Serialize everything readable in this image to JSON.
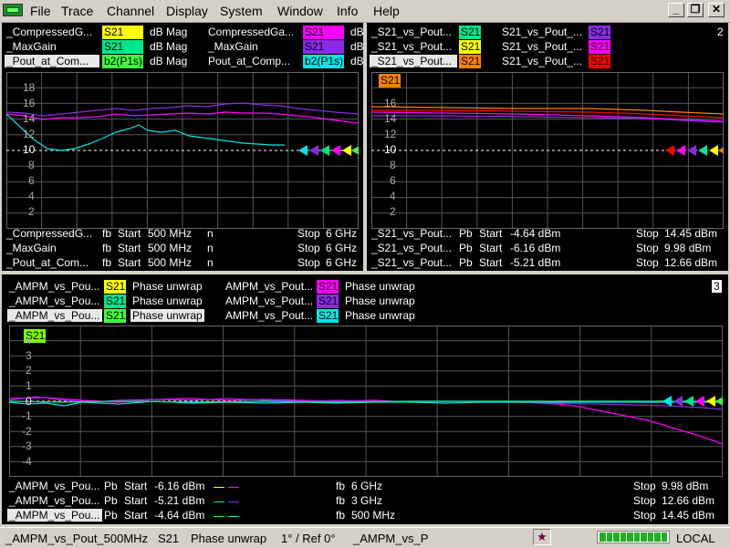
{
  "menu": [
    "File",
    "Trace",
    "Channel",
    "Display",
    "System",
    "Window",
    "Info",
    "Help"
  ],
  "window_buttons": {
    "minimize": "_",
    "restore": "❐",
    "close": "✕"
  },
  "win1": {
    "traces": [
      {
        "name": "_CompressedG...",
        "meas": "S21",
        "meas_color": "#ffff00",
        "format": "dB Mag",
        "name2": "CompressedGa...",
        "meas2": "S21",
        "meas2_color": "#ff00ff",
        "format2": "dB"
      },
      {
        "name": "_MaxGain",
        "meas": "S21",
        "meas_color": "#00e68a",
        "format": "dB Mag",
        "name2": "_MaxGain",
        "meas2": "S21",
        "meas2_color": "#8a2be2",
        "format2": "dB"
      },
      {
        "name": "_Pout_at_Com...",
        "meas": "b2(P1s)",
        "meas_color": "#40ff40",
        "format": "dB Mag",
        "name2": "Pout_at_Comp...",
        "meas2": "b2(P1s)",
        "meas2_color": "#00e5e5",
        "format2": "dB"
      }
    ],
    "yticks": [
      "18",
      "16",
      "14",
      "12",
      "10",
      "8",
      "6",
      "4",
      "2"
    ],
    "ref_value": "10",
    "footer": [
      {
        "name": "_CompressedG...",
        "fb": "fb",
        "start": "Start",
        "start_val": "500 MHz",
        "n": "n",
        "stop": "Stop",
        "stop_val": "6 GHz"
      },
      {
        "name": "_MaxGain",
        "fb": "fb",
        "start": "Start",
        "start_val": "500 MHz",
        "n": "n",
        "stop": "Stop",
        "stop_val": "6 GHz"
      },
      {
        "name": "_Pout_at_Com...",
        "fb": "fb",
        "start": "Start",
        "start_val": "500 MHz",
        "n": "n",
        "stop": "Stop",
        "stop_val": "6 GHz"
      }
    ]
  },
  "win2": {
    "number": "2",
    "traces": [
      {
        "name": "_S21_vs_Pout...",
        "meas": "S21",
        "meas_color": "#00e68a",
        "name2": "S21_vs_Pout_...",
        "meas2": "S21",
        "meas2_color": "#8a2be2"
      },
      {
        "name": "_S21_vs_Pout...",
        "meas": "S21",
        "meas_color": "#ffff00",
        "name2": "S21_vs_Pout_...",
        "meas2": "S21",
        "meas2_color": "#ff00ff"
      },
      {
        "name": "_S21_vs_Pout...",
        "meas": "S21",
        "meas_color": "#ff8000",
        "name2": "S21_vs_Pout_...",
        "meas2": "S21",
        "meas2_color": "#ff0000"
      }
    ],
    "active_badge": "S21",
    "active_color": "#ff8000",
    "yticks": [
      "16",
      "14",
      "12",
      "10",
      "8",
      "6",
      "4",
      "2"
    ],
    "ref_value": "10",
    "footer": [
      {
        "name": "_S21_vs_Pout...",
        "fb": "Pb",
        "start": "Start",
        "start_val": "-4.64 dBm",
        "stop": "Stop",
        "stop_val": "14.45 dBm"
      },
      {
        "name": "_S21_vs_Pout...",
        "fb": "Pb",
        "start": "Start",
        "start_val": "-6.16 dBm",
        "stop": "Stop",
        "stop_val": "9.98 dBm"
      },
      {
        "name": "_S21_vs_Pout...",
        "fb": "Pb",
        "start": "Start",
        "start_val": "-5.21 dBm",
        "stop": "Stop",
        "stop_val": "12.66 dBm"
      }
    ]
  },
  "win3": {
    "number": "3",
    "traces": [
      {
        "name": "_AMPM_vs_Pou...",
        "meas": "S21",
        "meas_color": "#ffff00",
        "format": "Phase unwrap",
        "name2": "AMPM_vs_Pout...",
        "meas2": "S21",
        "meas2_color": "#ff00ff",
        "format2": "Phase unwrap"
      },
      {
        "name": "_AMPM_vs_Pou...",
        "meas": "S21",
        "meas_color": "#00e68a",
        "format": "Phase unwrap",
        "name2": "AMPM_vs_Pout...",
        "meas2": "S21",
        "meas2_color": "#8a2be2",
        "format2": "Phase unwrap"
      },
      {
        "name": "_AMPM_vs_Pou...",
        "meas": "S21",
        "meas_color": "#40ff40",
        "format": "Phase unwrap",
        "name2": "AMPM_vs_Pout...",
        "meas2": "S21",
        "meas2_color": "#00e5e5",
        "format2": "Phase unwrap"
      }
    ],
    "active_badge": "S21",
    "active_color": "#7cfc00",
    "yticks": [
      "4",
      "3",
      "2",
      "1",
      "0",
      "-1",
      "-2",
      "-3",
      "-4"
    ],
    "ref_value": "0",
    "footer": [
      {
        "name": "_AMPM_vs_Pou...",
        "fb": "Pb",
        "start": "Start",
        "start_val": "-6.16 dBm",
        "c1": "#ffff00",
        "c2": "#ff00ff",
        "fb2": "fb",
        "freq": "6 GHz",
        "stop": "Stop",
        "stop_val": "9.98 dBm"
      },
      {
        "name": "_AMPM_vs_Pou...",
        "fb": "Pb",
        "start": "Start",
        "start_val": "-5.21 dBm",
        "c1": "#00e68a",
        "c2": "#8a2be2",
        "fb2": "fb",
        "freq": "3 GHz",
        "stop": "Stop",
        "stop_val": "12.66 dBm"
      },
      {
        "name": "_AMPM_vs_Pou...",
        "fb": "Pb",
        "start": "Start",
        "start_val": "-4.64 dBm",
        "c1": "#40ff40",
        "c2": "#00e5e5",
        "fb2": "fb",
        "freq": "500 MHz",
        "stop": "Stop",
        "stop_val": "14.45 dBm"
      }
    ]
  },
  "status": {
    "trace": "_AMPM_vs_Pout_500MHz",
    "meas": "S21",
    "format": "Phase unwrap",
    "scale": "1° / Ref 0°",
    "channel": "_AMPM_vs_P",
    "mode": "LOCAL"
  }
}
